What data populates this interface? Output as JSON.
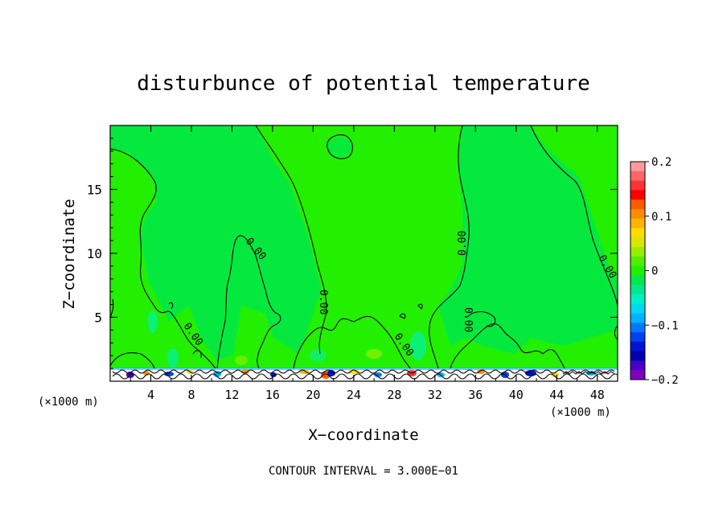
{
  "chart_data": {
    "type": "heatmap",
    "title": "disturbunce of potential temperature",
    "xlabel": "X−coordinate",
    "ylabel": "Z−coordinate",
    "x_unit_left": "(×1000 m)",
    "x_unit_right": "(×1000 m)",
    "xlim": [
      0,
      50
    ],
    "ylim": [
      0,
      20
    ],
    "x_ticks": [
      4,
      8,
      12,
      16,
      20,
      24,
      28,
      32,
      36,
      40,
      44,
      48
    ],
    "x_tick_labels": [
      "4",
      "8",
      "12",
      "16",
      "20",
      "24",
      "28",
      "32",
      "36",
      "40",
      "44",
      "48"
    ],
    "y_ticks": [
      5,
      10,
      15
    ],
    "y_tick_labels": [
      "5",
      "10",
      "15"
    ],
    "field_background_value": 0.02,
    "contour_label": "0.00",
    "contour_interval_text": "CONTOUR INTERVAL = 3.000E−01",
    "colorbar": {
      "min": -0.2,
      "max": 0.2,
      "tick_values": [
        0.2,
        0.1,
        0,
        -0.1,
        -0.2
      ],
      "tick_labels": [
        "0.2",
        "0.1",
        "0",
        "−0.1",
        "−0.2"
      ],
      "colors": [
        "#ff9999",
        "#ff6666",
        "#ff3333",
        "#ff0000",
        "#ff5a00",
        "#ff8c00",
        "#ffb400",
        "#ffdc00",
        "#d8e600",
        "#96ee00",
        "#50f000",
        "#20f000",
        "#00e84a",
        "#00e88e",
        "#00f0c8",
        "#00d8f0",
        "#00b4ff",
        "#0078ff",
        "#0040f0",
        "#0014d8",
        "#0000b0",
        "#4800c8",
        "#8000c0"
      ]
    },
    "features": [
      {
        "kind": "zero-contour",
        "label": "0.00",
        "x": 13.6,
        "z": 10.6
      },
      {
        "kind": "zero-contour",
        "label": "0.00",
        "x": 8.3,
        "z": 3.6
      },
      {
        "kind": "zero-contour",
        "label": "0.00",
        "x": 21.3,
        "z": 6.3
      },
      {
        "kind": "zero-contour",
        "label": "0.00",
        "x": 28.6,
        "z": 2.3
      },
      {
        "kind": "zero-contour",
        "label": "0.00",
        "x": 35.4,
        "z": 4.2
      },
      {
        "kind": "zero-contour",
        "label": "0.00",
        "x": 35.6,
        "z": 10.6
      },
      {
        "kind": "zero-contour",
        "label": "0.00",
        "x": 49.1,
        "z": 8.6
      }
    ]
  }
}
